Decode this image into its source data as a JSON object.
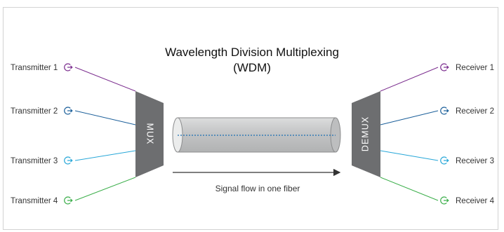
{
  "title": {
    "line1": "Wavelength Division Multiplexing",
    "line2": "(WDM)"
  },
  "transmitters": [
    {
      "label": "Transmitter 1",
      "color": "#7b2d8e"
    },
    {
      "label": "Transmitter 2",
      "color": "#1b5f9a"
    },
    {
      "label": "Transmitter 3",
      "color": "#27a7d8"
    },
    {
      "label": "Transmitter 4",
      "color": "#3aae49"
    }
  ],
  "receivers": [
    {
      "label": "Receiver 1",
      "color": "#7b2d8e"
    },
    {
      "label": "Receiver 2",
      "color": "#1b5f9a"
    },
    {
      "label": "Receiver 3",
      "color": "#27a7d8"
    },
    {
      "label": "Receiver 4",
      "color": "#3aae49"
    }
  ],
  "mux": {
    "label": "MUX",
    "color": "#6d6e70"
  },
  "demux": {
    "label": "DEMUX",
    "color": "#6d6e70"
  },
  "fiber": {
    "color": "#c8c9ca",
    "core_color": "#1b6fb3"
  },
  "flow": {
    "label": "Signal flow in one fiber"
  }
}
